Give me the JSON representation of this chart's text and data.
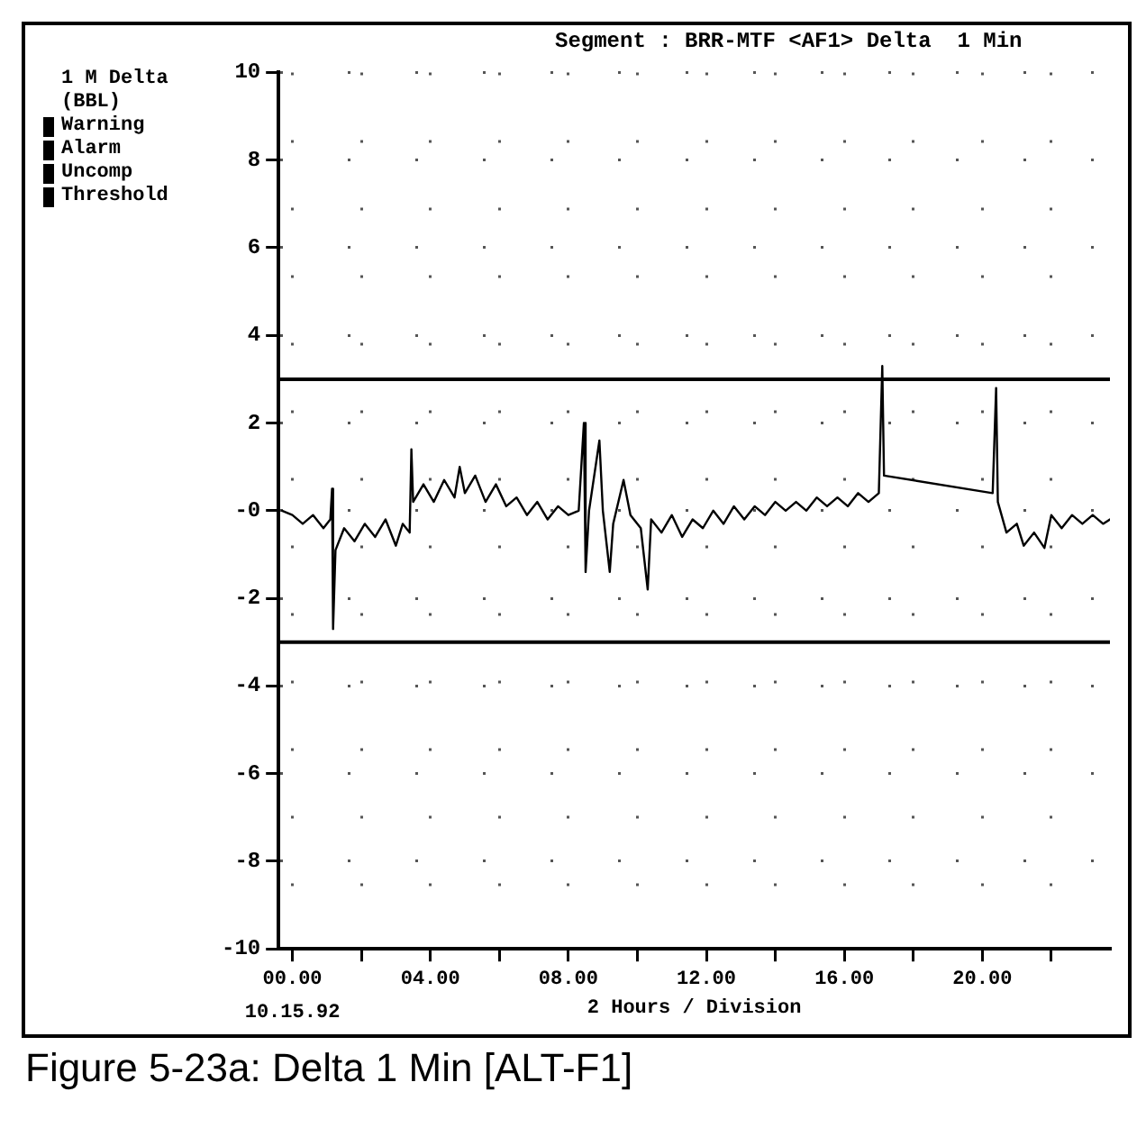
{
  "chart_data": {
    "type": "line",
    "title": "Segment : BRR-MTF <AF1> Delta  1 Min",
    "xlabel": "2 Hours / Division",
    "ylabel": "1 M Delta (BBL)",
    "annotations": [
      "10.15.92",
      "Warning",
      "Alarm",
      "Uncomp",
      "Threshold",
      "Figure 5-23a: Delta 1 Min [ALT-F1]"
    ],
    "x": [
      -0.3,
      0,
      0.3,
      0.6,
      0.9,
      1.1,
      1.15,
      1.18,
      1.25,
      1.5,
      1.8,
      2.1,
      2.4,
      2.7,
      3.0,
      3.2,
      3.4,
      3.45,
      3.5,
      3.8,
      4.1,
      4.4,
      4.7,
      4.85,
      5.0,
      5.3,
      5.6,
      5.9,
      6.2,
      6.5,
      6.8,
      7.1,
      7.4,
      7.7,
      8.0,
      8.3,
      8.45,
      8.5,
      8.6,
      8.9,
      9.0,
      9.2,
      9.3,
      9.6,
      9.8,
      10.1,
      10.3,
      10.4,
      10.7,
      11.0,
      11.3,
      11.6,
      11.9,
      12.2,
      12.5,
      12.8,
      13.1,
      13.4,
      13.7,
      14.0,
      14.3,
      14.6,
      14.9,
      15.2,
      15.5,
      15.8,
      16.1,
      16.4,
      16.7,
      17.0,
      17.1,
      17.15,
      20.3,
      20.4,
      20.45,
      20.7,
      21.0,
      21.2,
      21.5,
      21.8,
      22.0,
      22.3,
      22.6,
      22.9,
      23.2,
      23.5,
      23.7
    ],
    "series": [
      {
        "color": "#000000",
        "values": [
          0,
          -0.1,
          -0.3,
          -0.1,
          -0.4,
          -0.2,
          0.5,
          -2.7,
          -0.9,
          -0.4,
          -0.7,
          -0.3,
          -0.6,
          -0.2,
          -0.8,
          -0.3,
          -0.5,
          1.4,
          0.2,
          0.6,
          0.2,
          0.7,
          0.3,
          1.0,
          0.4,
          0.8,
          0.2,
          0.6,
          0.1,
          0.3,
          -0.1,
          0.2,
          -0.2,
          0.1,
          -0.1,
          0,
          2.0,
          -1.4,
          0,
          1.6,
          0,
          -1.4,
          -0.3,
          0.7,
          -0.1,
          -0.4,
          -1.8,
          -0.2,
          -0.5,
          -0.1,
          -0.6,
          -0.2,
          -0.4,
          0,
          -0.3,
          0.1,
          -0.2,
          0.1,
          -0.1,
          0.2,
          0,
          0.2,
          0,
          0.3,
          0.1,
          0.3,
          0.1,
          0.4,
          0.2,
          0.4,
          3.3,
          0.8,
          0.4,
          2.8,
          0.2,
          -0.5,
          -0.3,
          -0.8,
          -0.5,
          -0.85,
          -0.1,
          -0.4,
          -0.1,
          -0.3,
          -0.1,
          -0.3,
          -0.2
        ]
      }
    ],
    "xlim": [
      -0.4,
      23.7
    ],
    "xticks": [
      {
        "value": 0,
        "label": "00.00"
      },
      {
        "value": 2,
        "label": null
      },
      {
        "value": 4,
        "label": "04.00"
      },
      {
        "value": 6,
        "label": null
      },
      {
        "value": 8,
        "label": "08.00"
      },
      {
        "value": 10,
        "label": null
      },
      {
        "value": 12,
        "label": "12.00"
      },
      {
        "value": 14,
        "label": null
      },
      {
        "value": 16,
        "label": "16.00"
      },
      {
        "value": 18,
        "label": null
      },
      {
        "value": 20,
        "label": "20.00"
      },
      {
        "value": 22,
        "label": null
      }
    ],
    "ylim": [
      -10,
      10
    ],
    "yticks": [
      -10,
      -8,
      -6,
      -4,
      -2,
      {
        "value": 0,
        "label": "-0"
      },
      2,
      4,
      6,
      8,
      10
    ],
    "ref_lines": [
      {
        "axis": "y",
        "value": 3,
        "color": "#000000"
      },
      {
        "axis": "y",
        "value": -3,
        "color": "#000000"
      }
    ],
    "grid": true,
    "marker": "none",
    "line_style": "solid"
  }
}
